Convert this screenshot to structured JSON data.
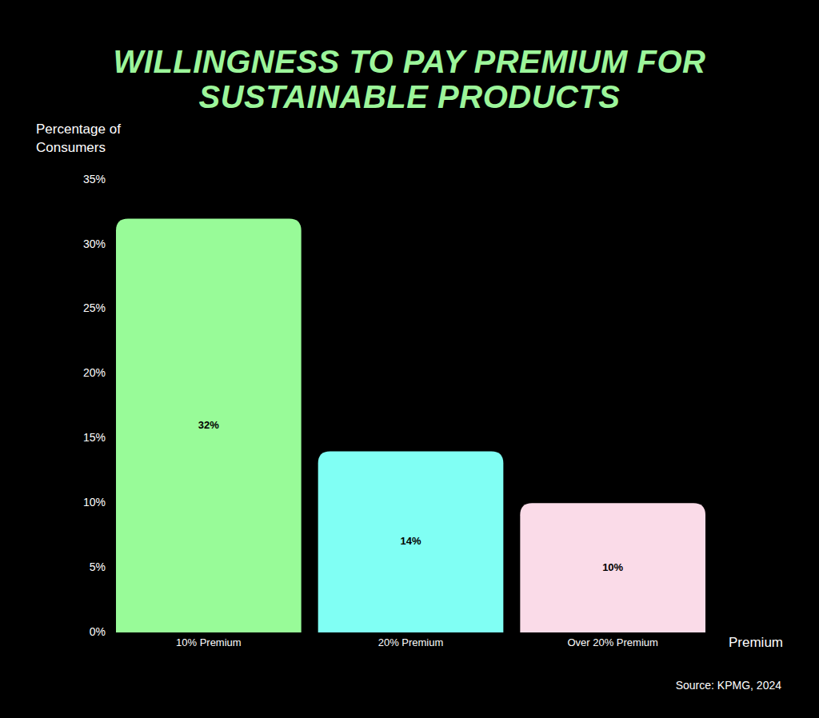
{
  "chart_data": {
    "type": "bar",
    "title": "WILLINGNESS TO PAY PREMIUM FOR SUSTAINABLE PRODUCTS",
    "ylabel": "Percentage of Consumers",
    "xlabel": "Premium",
    "source": "Source: KPMG, 2024",
    "categories": [
      "10% Premium",
      "20% Premium",
      "Over 20% Premium"
    ],
    "values": [
      32,
      14,
      10
    ],
    "value_labels": [
      "32%",
      "14%",
      "10%"
    ],
    "colors": [
      "#98fb98",
      "#80fff4",
      "#fadbe8"
    ],
    "ylim": [
      0,
      35
    ],
    "yticks": [
      {
        "value": 0,
        "label": "0%"
      },
      {
        "value": 5,
        "label": "5%"
      },
      {
        "value": 10,
        "label": "10%"
      },
      {
        "value": 15,
        "label": "15%"
      },
      {
        "value": 20,
        "label": "20%"
      },
      {
        "value": 25,
        "label": "25%"
      },
      {
        "value": 30,
        "label": "30%"
      },
      {
        "value": 35,
        "label": "35%"
      }
    ],
    "grid": false,
    "data_labels": true
  }
}
